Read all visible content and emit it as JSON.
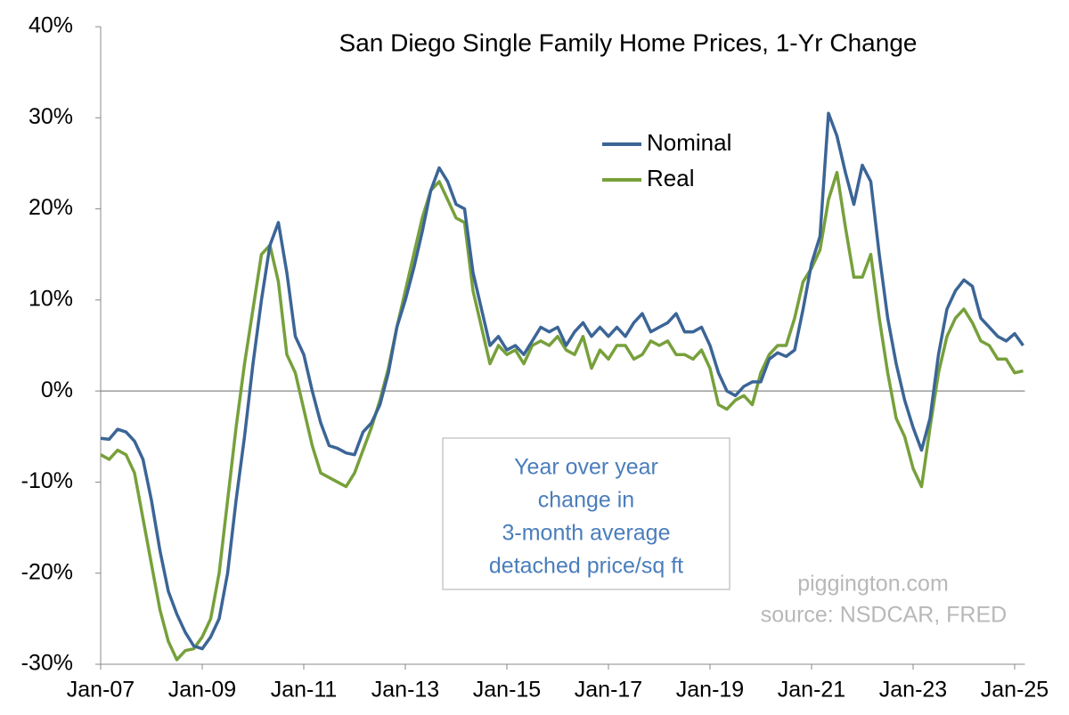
{
  "chart_data": {
    "type": "line",
    "title": "San Diego Single Family Home Prices, 1-Yr Change",
    "categories": [
      "Jan-07",
      null,
      null,
      null,
      null,
      null,
      null,
      null,
      null,
      null,
      null,
      null,
      "Jan-09",
      null,
      null,
      null,
      null,
      null,
      null,
      null,
      null,
      null,
      null,
      null,
      "Jan-11",
      null,
      null,
      null,
      null,
      null,
      null,
      null,
      null,
      null,
      null,
      null,
      "Jan-13",
      null,
      null,
      null,
      null,
      null,
      null,
      null,
      null,
      null,
      null,
      null,
      "Jan-15",
      null,
      null,
      null,
      null,
      null,
      null,
      null,
      null,
      null,
      null,
      null,
      "Jan-17",
      null,
      null,
      null,
      null,
      null,
      null,
      null,
      null,
      null,
      null,
      null,
      "Jan-19",
      null,
      null,
      null,
      null,
      null,
      null,
      null,
      null,
      null,
      null,
      null,
      "Jan-21",
      null,
      null,
      null,
      null,
      null,
      null,
      null,
      null,
      null,
      null,
      null,
      "Jan-23",
      null,
      null,
      null,
      null,
      null,
      null,
      null,
      null,
      null,
      null,
      null,
      "Jan-25",
      null
    ],
    "series": [
      {
        "name": "Nominal",
        "color": "#3b6596",
        "values": [
          -5.2,
          -5.3,
          -4.2,
          -4.5,
          -5.5,
          -7.5,
          -12,
          -17.5,
          -22,
          -24.5,
          -26.5,
          -28,
          -28.3,
          -27,
          -25,
          -20,
          -12,
          -5,
          3,
          10,
          16,
          18.5,
          13,
          6,
          4,
          0,
          -3.5,
          -6,
          -6.3,
          -6.8,
          -7,
          -4.5,
          -3.5,
          -1.5,
          2,
          7,
          10,
          13.5,
          17.5,
          22,
          24.5,
          23,
          20.5,
          20,
          13,
          9,
          5,
          6,
          4.5,
          5,
          4,
          5.5,
          7,
          6.5,
          7,
          5,
          6.5,
          7.5,
          6,
          7,
          6,
          7,
          6,
          7.5,
          8.5,
          6.5,
          7,
          7.5,
          8.5,
          6.5,
          6.5,
          7,
          5,
          2,
          0,
          -0.5,
          0.5,
          1,
          1,
          3.5,
          4.2,
          3.8,
          4.5,
          9,
          14,
          17,
          30.5,
          28,
          24,
          20.5,
          24.8,
          23,
          15,
          8,
          3,
          -1,
          -4,
          -6.5,
          -3,
          4,
          9,
          11,
          12.2,
          11.5,
          8,
          7,
          6,
          5.5,
          6.3,
          5
        ]
      },
      {
        "name": "Real",
        "color": "#77a03b",
        "values": [
          -7,
          -7.5,
          -6.5,
          -7,
          -9,
          -14,
          -19,
          -24,
          -27.5,
          -29.5,
          -28.5,
          -28.3,
          -27,
          -25,
          -20,
          -12,
          -4,
          3,
          9,
          15,
          16,
          12,
          4,
          2,
          -2,
          -6,
          -9,
          -9.5,
          -10,
          -10.5,
          -9,
          -6.5,
          -4,
          -1,
          2.5,
          7,
          11,
          15,
          19,
          22,
          23,
          21,
          19,
          18.5,
          11,
          7,
          3,
          5,
          4,
          4.5,
          3,
          5,
          5.5,
          5,
          6,
          4.5,
          4,
          6,
          2.5,
          4.5,
          3.5,
          5,
          5,
          3.5,
          4,
          5.5,
          5,
          5.5,
          4,
          4,
          3.5,
          4.5,
          2.5,
          -1.5,
          -2,
          -1,
          -0.5,
          -1.5,
          2,
          4,
          5,
          5,
          8,
          12,
          13.5,
          15.5,
          21,
          24,
          18,
          12.5,
          12.5,
          15,
          8,
          2,
          -3,
          -5,
          -8.5,
          -10.5,
          -4,
          2,
          6,
          8,
          9,
          7.5,
          5.5,
          5,
          3.5,
          3.5,
          2,
          2.2
        ]
      }
    ],
    "ylim": [
      -30,
      40
    ],
    "yticks": [
      {
        "value": -30,
        "label": "-30%"
      },
      {
        "value": -20,
        "label": "-20%"
      },
      {
        "value": -10,
        "label": "-10%"
      },
      {
        "value": 0,
        "label": "0%"
      },
      {
        "value": 10,
        "label": "10%"
      },
      {
        "value": 20,
        "label": "20%"
      },
      {
        "value": 30,
        "label": "30%"
      },
      {
        "value": 40,
        "label": "40%"
      }
    ],
    "annotation": [
      "Year over year",
      "change in",
      "3-month average",
      "detached price/sq ft"
    ],
    "credits": [
      "piggington.com",
      "source: NSDCAR, FRED"
    ]
  }
}
